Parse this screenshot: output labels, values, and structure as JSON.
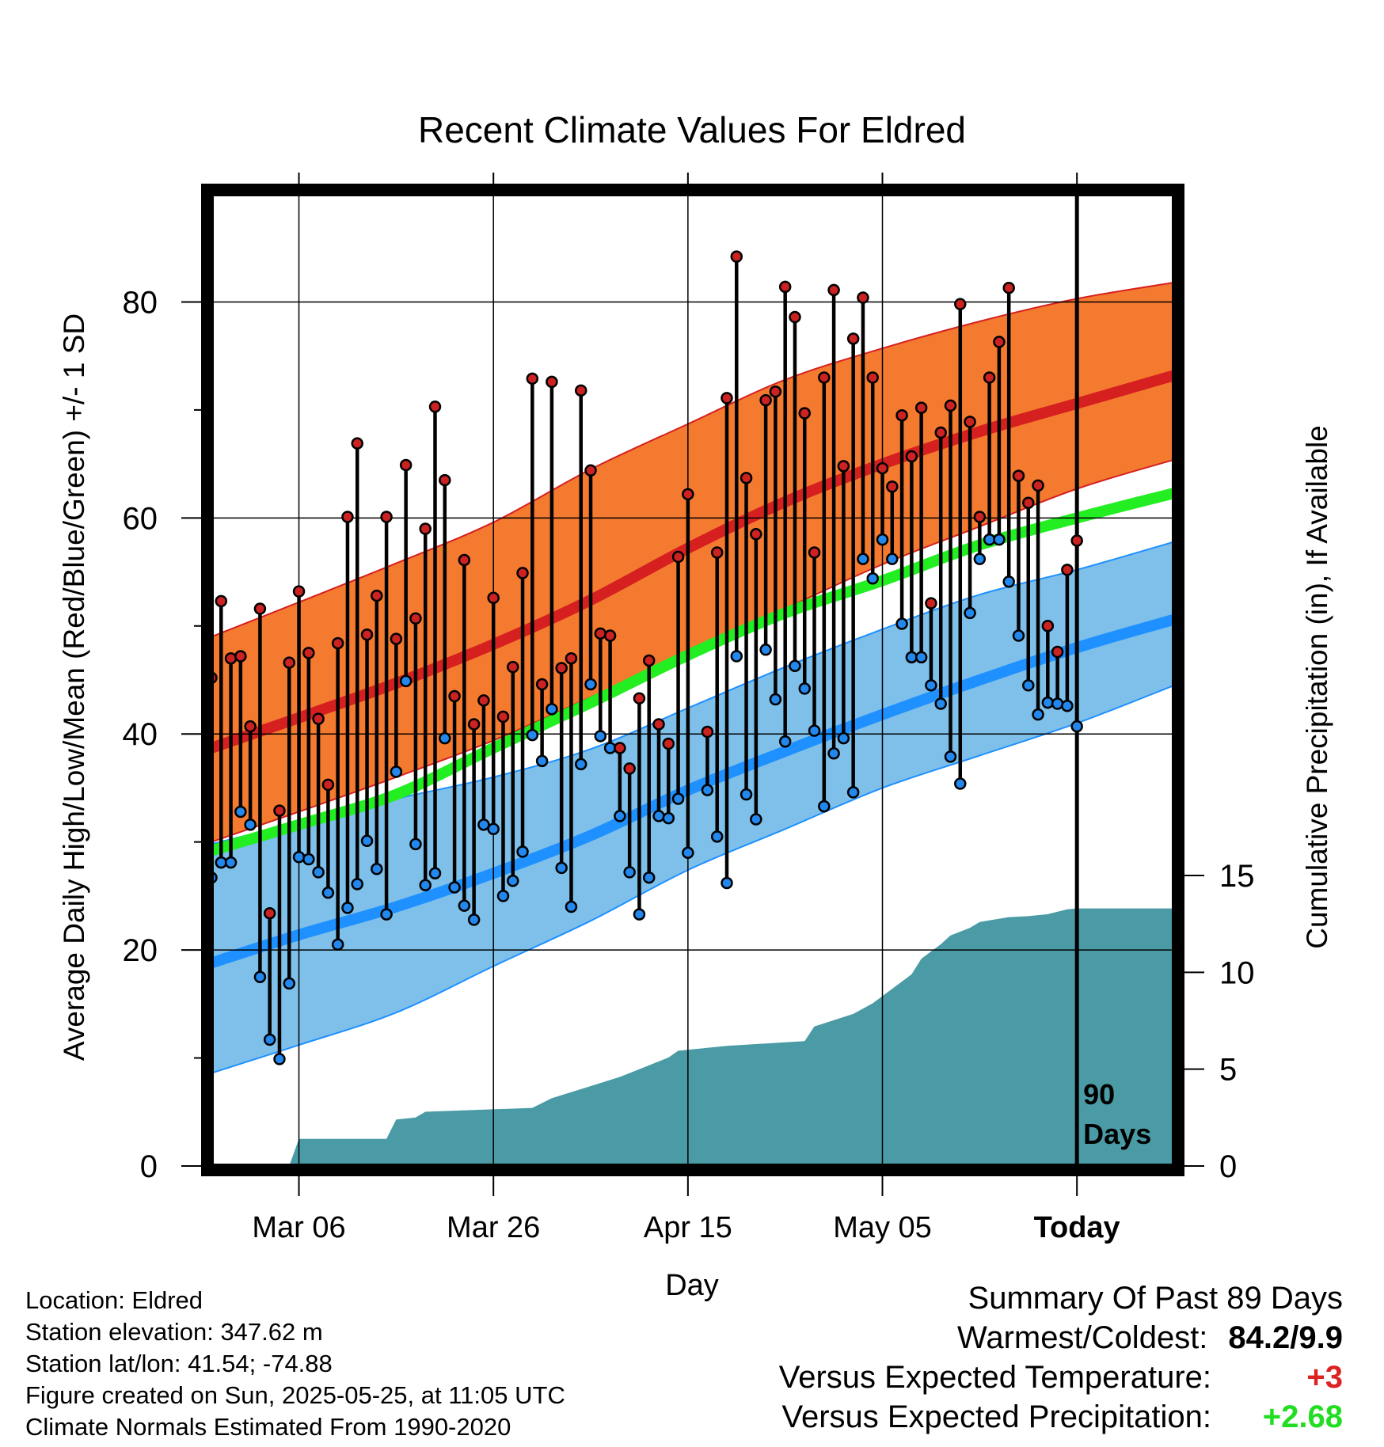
{
  "chart_data": {
    "type": "line",
    "title": "Recent Climate Values For Eldred",
    "xlabel": "Day",
    "ylabel": "Average Daily High/Low/Mean (Red/Blue/Green) +/- 1 SD",
    "y2label": "Cumulative Precipitation (in), If Available",
    "ylim": [
      0,
      90
    ],
    "y_ticks": [
      "0",
      "20",
      "40",
      "60",
      "80"
    ],
    "y2lim": [
      0,
      15
    ],
    "y2_ticks": [
      "0",
      "5",
      "10",
      "15"
    ],
    "x_start": "2025-02-25",
    "x_end": "2025-06-04",
    "x_ticks": [
      {
        "date": "2025-03-06",
        "label": "Mar 06"
      },
      {
        "date": "2025-03-26",
        "label": "Mar 26"
      },
      {
        "date": "2025-04-15",
        "label": "Apr 15"
      },
      {
        "date": "2025-05-05",
        "label": "May 05"
      },
      {
        "date": "2025-05-25",
        "label": "Today"
      }
    ],
    "today": "2025-05-25",
    "today_label": [
      "90",
      "Days"
    ],
    "grid": true,
    "colors": {
      "high": "#d62020",
      "high_band": "#f47a30",
      "low": "#1e90ff",
      "low_band": "#7ec0ea",
      "mean": "#22ee22",
      "precip": "#4a9ba5",
      "marker_high": "#cc2222",
      "marker_low": "#2288ee"
    },
    "normals": {
      "dates": [
        "2025-02-25",
        "2025-03-06",
        "2025-03-16",
        "2025-03-26",
        "2025-04-05",
        "2025-04-15",
        "2025-04-25",
        "2025-05-05",
        "2025-05-15",
        "2025-05-25",
        "2025-06-04"
      ],
      "high_mean": [
        38.7,
        41.5,
        44.7,
        48.3,
        52.4,
        57.2,
        61.5,
        65.0,
        68.0,
        70.6,
        73.2
      ],
      "high_upper": [
        49.0,
        52.2,
        55.8,
        59.6,
        64.5,
        68.7,
        72.8,
        75.7,
        78.2,
        80.3,
        81.8
      ],
      "high_lower": [
        30.0,
        32.8,
        36.0,
        39.4,
        43.4,
        47.4,
        51.6,
        55.7,
        59.2,
        62.7,
        65.4
      ],
      "mean": [
        29.2,
        31.6,
        34.4,
        38.7,
        42.9,
        47.3,
        51.2,
        54.2,
        57.5,
        60.0,
        62.3
      ],
      "low_mean": [
        18.8,
        21.4,
        24.0,
        27.1,
        30.6,
        34.8,
        38.4,
        41.8,
        45.0,
        48.0,
        50.6
      ],
      "low_upper": [
        29.8,
        31.8,
        34.0,
        36.0,
        38.6,
        42.4,
        46.2,
        49.7,
        52.9,
        55.2,
        57.8
      ],
      "low_lower": [
        8.6,
        11.2,
        14.2,
        18.5,
        22.7,
        27.4,
        31.2,
        35.0,
        38.0,
        41.0,
        44.5
      ]
    },
    "precip_cumulative": {
      "dates": [
        "2025-03-05",
        "2025-03-06",
        "2025-03-15",
        "2025-03-16",
        "2025-03-18",
        "2025-03-19",
        "2025-03-30",
        "2025-04-01",
        "2025-04-08",
        "2025-04-10",
        "2025-04-13",
        "2025-04-14",
        "2025-04-18",
        "2025-04-19",
        "2025-04-27",
        "2025-04-28",
        "2025-05-02",
        "2025-05-04",
        "2025-05-08",
        "2025-05-09",
        "2025-05-11",
        "2025-05-12",
        "2025-05-14",
        "2025-05-15",
        "2025-05-18",
        "2025-05-20",
        "2025-05-22",
        "2025-05-24",
        "2025-05-25",
        "2025-06-04"
      ],
      "values": [
        0.0,
        1.4,
        1.4,
        2.4,
        2.5,
        2.8,
        3.0,
        3.5,
        4.6,
        5.0,
        5.6,
        5.95,
        6.15,
        6.2,
        6.45,
        7.2,
        7.85,
        8.4,
        9.9,
        10.7,
        11.45,
        11.9,
        12.3,
        12.6,
        12.85,
        12.9,
        13.0,
        13.25,
        13.3,
        13.3
      ]
    },
    "daily": [
      {
        "date": "2025-02-25",
        "high": 45.2,
        "low": 26.7
      },
      {
        "date": "2025-02-26",
        "high": 52.3,
        "low": 28.1
      },
      {
        "date": "2025-02-27",
        "high": 47.0,
        "low": 28.1
      },
      {
        "date": "2025-02-28",
        "high": 47.2,
        "low": 32.8
      },
      {
        "date": "2025-03-01",
        "high": 40.7,
        "low": 31.6
      },
      {
        "date": "2025-03-02",
        "high": 51.6,
        "low": 17.5
      },
      {
        "date": "2025-03-03",
        "high": 23.4,
        "low": 11.7
      },
      {
        "date": "2025-03-04",
        "high": 32.9,
        "low": 9.9
      },
      {
        "date": "2025-03-05",
        "high": 46.6,
        "low": 16.9
      },
      {
        "date": "2025-03-06",
        "high": 53.2,
        "low": 28.6
      },
      {
        "date": "2025-03-07",
        "high": 47.5,
        "low": 28.4
      },
      {
        "date": "2025-03-08",
        "high": 41.4,
        "low": 27.2
      },
      {
        "date": "2025-03-09",
        "high": 35.3,
        "low": 25.3
      },
      {
        "date": "2025-03-10",
        "high": 48.4,
        "low": 20.5
      },
      {
        "date": "2025-03-11",
        "high": 60.1,
        "low": 23.9
      },
      {
        "date": "2025-03-12",
        "high": 66.9,
        "low": 26.1
      },
      {
        "date": "2025-03-13",
        "high": 49.2,
        "low": 30.1
      },
      {
        "date": "2025-03-14",
        "high": 52.8,
        "low": 27.5
      },
      {
        "date": "2025-03-15",
        "high": 60.1,
        "low": 23.3
      },
      {
        "date": "2025-03-16",
        "high": 48.8,
        "low": 36.5
      },
      {
        "date": "2025-03-17",
        "high": 64.9,
        "low": 44.9
      },
      {
        "date": "2025-03-18",
        "high": 50.7,
        "low": 29.8
      },
      {
        "date": "2025-03-19",
        "high": 59.0,
        "low": 26.0
      },
      {
        "date": "2025-03-20",
        "high": 70.3,
        "low": 27.1
      },
      {
        "date": "2025-03-21",
        "high": 63.5,
        "low": 39.6
      },
      {
        "date": "2025-03-22",
        "high": 43.5,
        "low": 25.8
      },
      {
        "date": "2025-03-23",
        "high": 56.1,
        "low": 24.1
      },
      {
        "date": "2025-03-24",
        "high": 40.9,
        "low": 22.8
      },
      {
        "date": "2025-03-25",
        "high": 43.1,
        "low": 31.6
      },
      {
        "date": "2025-03-26",
        "high": 52.6,
        "low": 31.2
      },
      {
        "date": "2025-03-27",
        "high": 41.6,
        "low": 25.0
      },
      {
        "date": "2025-03-28",
        "high": 46.2,
        "low": 26.4
      },
      {
        "date": "2025-03-29",
        "high": 54.9,
        "low": 29.1
      },
      {
        "date": "2025-03-30",
        "high": 72.9,
        "low": 39.9
      },
      {
        "date": "2025-03-31",
        "high": 44.6,
        "low": 37.5
      },
      {
        "date": "2025-04-01",
        "high": 72.6,
        "low": 42.3
      },
      {
        "date": "2025-04-02",
        "high": 46.1,
        "low": 27.6
      },
      {
        "date": "2025-04-03",
        "high": 47.0,
        "low": 24.0
      },
      {
        "date": "2025-04-04",
        "high": 71.8,
        "low": 37.2
      },
      {
        "date": "2025-04-05",
        "high": 64.4,
        "low": 44.6
      },
      {
        "date": "2025-04-06",
        "high": 49.3,
        "low": 39.8
      },
      {
        "date": "2025-04-07",
        "high": 49.1,
        "low": 38.7
      },
      {
        "date": "2025-04-08",
        "high": 38.7,
        "low": 32.4
      },
      {
        "date": "2025-04-09",
        "high": 36.8,
        "low": 27.2
      },
      {
        "date": "2025-04-10",
        "high": 43.3,
        "low": 23.3
      },
      {
        "date": "2025-04-11",
        "high": 46.8,
        "low": 26.7
      },
      {
        "date": "2025-04-12",
        "high": 40.9,
        "low": 32.4
      },
      {
        "date": "2025-04-13",
        "high": 39.1,
        "low": 32.2
      },
      {
        "date": "2025-04-14",
        "high": 56.4,
        "low": 34.0
      },
      {
        "date": "2025-04-15",
        "high": 62.2,
        "low": 29.0
      },
      {
        "date": "2025-04-17",
        "high": 40.2,
        "low": 34.8
      },
      {
        "date": "2025-04-18",
        "high": 56.8,
        "low": 30.5
      },
      {
        "date": "2025-04-19",
        "high": 71.1,
        "low": 26.2
      },
      {
        "date": "2025-04-20",
        "high": 84.2,
        "low": 47.2
      },
      {
        "date": "2025-04-21",
        "high": 63.7,
        "low": 34.4
      },
      {
        "date": "2025-04-22",
        "high": 58.5,
        "low": 32.1
      },
      {
        "date": "2025-04-23",
        "high": 70.9,
        "low": 47.8
      },
      {
        "date": "2025-04-24",
        "high": 71.7,
        "low": 43.2
      },
      {
        "date": "2025-04-25",
        "high": 81.4,
        "low": 39.3
      },
      {
        "date": "2025-04-26",
        "high": 78.6,
        "low": 46.3
      },
      {
        "date": "2025-04-27",
        "high": 69.7,
        "low": 44.2
      },
      {
        "date": "2025-04-28",
        "high": 56.8,
        "low": 40.3
      },
      {
        "date": "2025-04-29",
        "high": 73.0,
        "low": 33.3
      },
      {
        "date": "2025-04-30",
        "high": 81.1,
        "low": 38.2
      },
      {
        "date": "2025-05-01",
        "high": 64.8,
        "low": 39.6
      },
      {
        "date": "2025-05-02",
        "high": 76.6,
        "low": 34.6
      },
      {
        "date": "2025-05-03",
        "high": 80.4,
        "low": 56.2
      },
      {
        "date": "2025-05-04",
        "high": 73.0,
        "low": 54.4
      },
      {
        "date": "2025-05-05",
        "high": 64.6,
        "low": 58.0
      },
      {
        "date": "2025-05-06",
        "high": 62.9,
        "low": 56.2
      },
      {
        "date": "2025-05-07",
        "high": 69.5,
        "low": 50.2
      },
      {
        "date": "2025-05-08",
        "high": 65.7,
        "low": 47.1
      },
      {
        "date": "2025-05-09",
        "high": 70.2,
        "low": 47.1
      },
      {
        "date": "2025-05-10",
        "high": 52.1,
        "low": 44.5
      },
      {
        "date": "2025-05-11",
        "high": 67.9,
        "low": 42.8
      },
      {
        "date": "2025-05-12",
        "high": 70.4,
        "low": 37.9
      },
      {
        "date": "2025-05-13",
        "high": 79.8,
        "low": 35.4
      },
      {
        "date": "2025-05-14",
        "high": 68.9,
        "low": 51.2
      },
      {
        "date": "2025-05-15",
        "high": 60.1,
        "low": 56.2
      },
      {
        "date": "2025-05-16",
        "high": 73.0,
        "low": 58.0
      },
      {
        "date": "2025-05-17",
        "high": 76.3,
        "low": 58.0
      },
      {
        "date": "2025-05-18",
        "high": 81.3,
        "low": 54.1
      },
      {
        "date": "2025-05-19",
        "high": 63.9,
        "low": 49.1
      },
      {
        "date": "2025-05-20",
        "high": 61.4,
        "low": 44.5
      },
      {
        "date": "2025-05-21",
        "high": 63.0,
        "low": 41.8
      },
      {
        "date": "2025-05-22",
        "high": 50.0,
        "low": 42.9
      },
      {
        "date": "2025-05-23",
        "high": 47.6,
        "low": 42.8
      },
      {
        "date": "2025-05-24",
        "high": 55.2,
        "low": 42.6
      },
      {
        "date": "2025-05-25",
        "high": 57.9,
        "low": 40.7
      }
    ]
  },
  "station": {
    "location": "Location: Eldred",
    "elevation": "Station elevation: 347.62 m",
    "latlon": "Station lat/lon: 41.54; -74.88",
    "created": "Figure created on Sun, 2025-05-25, at 11:05 UTC",
    "normals_note": "Climate Normals Estimated From 1990-2020"
  },
  "summary": {
    "heading": "Summary Of Past 89 Days",
    "warm_cold_label": "Warmest/Coldest:",
    "warm_cold_value": "84.2/9.9",
    "temp_label": "Versus Expected Temperature:",
    "temp_value": "+3",
    "temp_color": "#dd2222",
    "precip_label": "Versus Expected Precipitation:",
    "precip_value": "+2.68",
    "precip_color": "#22dd22"
  }
}
